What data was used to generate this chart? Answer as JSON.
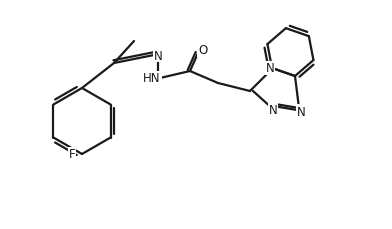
{
  "bg_color": "#ffffff",
  "line_color": "#1a1a1a",
  "bond_width": 1.6,
  "figsize": [
    3.92,
    2.3
  ],
  "dpi": 100,
  "atoms": {
    "F_label": "F",
    "N1_label": "N",
    "HN_label": "HN",
    "O_label": "O",
    "N_btz1_label": "N",
    "N_btz2_label": "N",
    "N_btz3_label": "N"
  }
}
